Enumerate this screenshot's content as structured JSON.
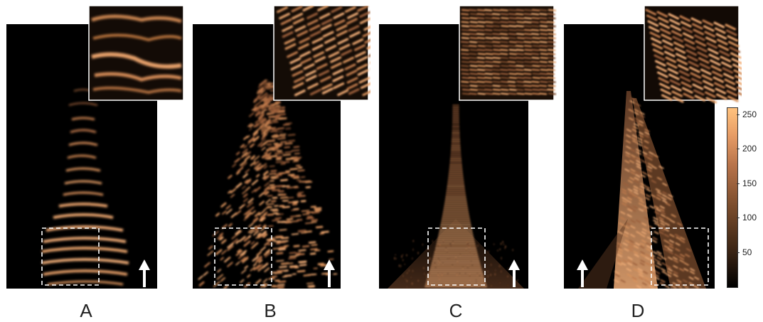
{
  "panels": [
    {
      "id": "A",
      "label": "A",
      "arrow_side": "right",
      "inset_side": "top-right",
      "pattern": "sparse-arcs"
    },
    {
      "id": "B",
      "label": "B",
      "arrow_side": "right",
      "inset_side": "top-right",
      "pattern": "speckle-cone"
    },
    {
      "id": "C",
      "label": "C",
      "arrow_side": "right",
      "inset_side": "top-right",
      "pattern": "narrow-cone"
    },
    {
      "id": "D",
      "label": "D",
      "arrow_side": "left",
      "inset_side": "top-right",
      "pattern": "crossing-beams"
    }
  ],
  "colorbar": {
    "ticks": [
      "250",
      "200",
      "150",
      "100",
      "50"
    ],
    "tick_values": [
      250,
      200,
      150,
      100,
      50
    ],
    "min": 0,
    "max": 260,
    "colormap": "copper"
  },
  "colors": {
    "background": "#000000",
    "copper_low": "#5a3620",
    "copper_mid": "#c07a4c",
    "copper_high": "#f2ae78",
    "dashed_box": "#ffffff",
    "arrow": "#ffffff"
  }
}
